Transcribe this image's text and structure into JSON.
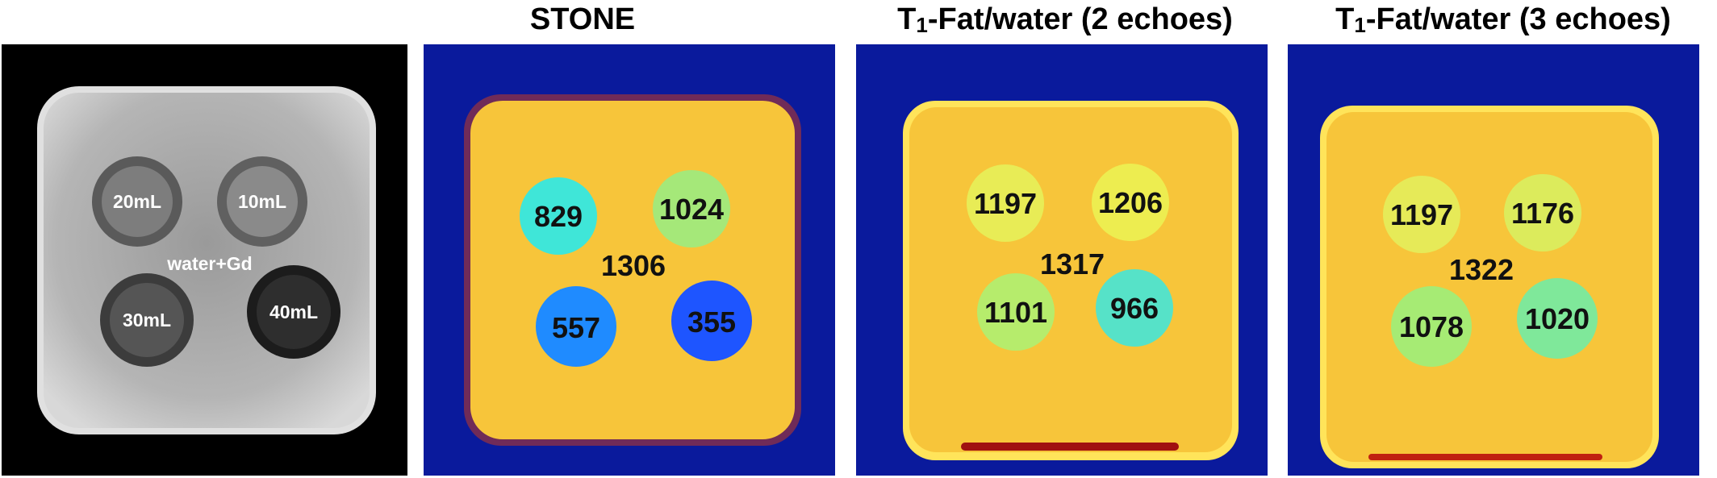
{
  "figure": {
    "panels": [
      {
        "type": "magnitude",
        "title": "",
        "center_label": "water+Gd",
        "vials": [
          {
            "label": "20mL",
            "shade": "#7d7d7d"
          },
          {
            "label": "10mL",
            "shade": "#8a8a8a"
          },
          {
            "label": "30mL",
            "shade": "#555555"
          },
          {
            "label": "40mL",
            "shade": "#2e2e2e"
          }
        ]
      },
      {
        "type": "t1map",
        "title": "STONE",
        "center_value": "1306",
        "vials": [
          {
            "value": "829",
            "color": "#3fe6d8"
          },
          {
            "value": "1024",
            "color": "#a5e879"
          },
          {
            "value": "557",
            "color": "#1f8bff"
          },
          {
            "value": "355",
            "color": "#1e55ff"
          }
        ]
      },
      {
        "type": "t1map",
        "title_prefix": "T",
        "title_sub": "1",
        "title_rest": "-Fat/water (2 echoes)",
        "center_value": "1317",
        "vials": [
          {
            "value": "1197",
            "color": "#e8ec56"
          },
          {
            "value": "1206",
            "color": "#eded50"
          },
          {
            "value": "1101",
            "color": "#b6ec6c"
          },
          {
            "value": "966",
            "color": "#56e2c8"
          }
        ]
      },
      {
        "type": "t1map",
        "title_prefix": "T",
        "title_sub": "1",
        "title_rest": "-Fat/water (3 echoes)",
        "center_value": "1322",
        "vials": [
          {
            "value": "1197",
            "color": "#e6ea58"
          },
          {
            "value": "1176",
            "color": "#dceb5c"
          },
          {
            "value": "1078",
            "color": "#a6eb74"
          },
          {
            "value": "1020",
            "color": "#7fe89a"
          }
        ]
      }
    ],
    "colors": {
      "map_background": "#0a1a9c",
      "phantom_fill": "#f7c53a",
      "phantom_edge": "#ffe45a",
      "magnitude_background": "#000000",
      "magnitude_phantom": "#bdbdbd",
      "value_text": "#111111",
      "magnitude_text": "#ffffff"
    }
  }
}
